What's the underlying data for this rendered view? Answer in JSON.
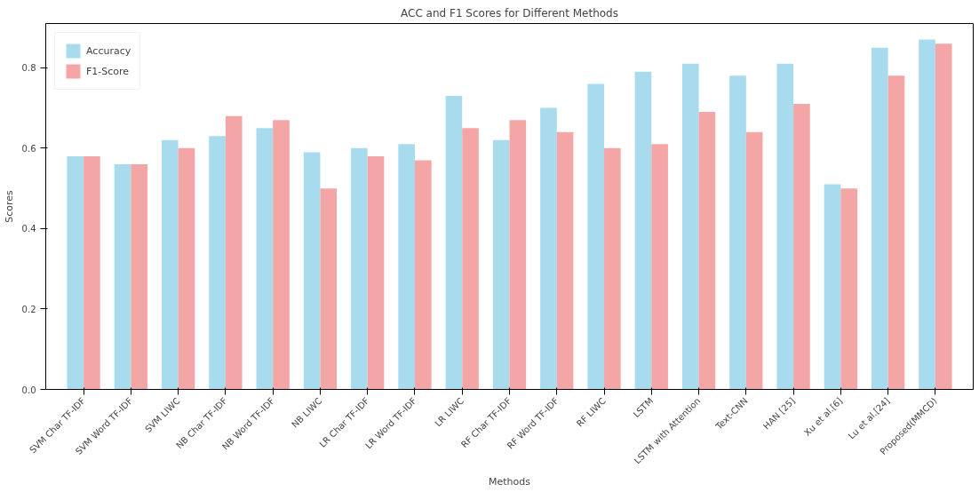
{
  "chart_data": {
    "type": "bar",
    "title": "ACC and F1 Scores for Different Methods",
    "xlabel": "Methods",
    "ylabel": "Scores",
    "categories": [
      "SVM Char TF-IDF",
      "SVM Word TF-IDF",
      "SVM LIWC",
      "NB Char TF-IDF",
      "NB Word TF-IDF",
      "NB LIWC",
      "LR Char TF-IDF",
      "LR Word TF-IDF",
      "LR LIWC",
      "RF Char TF-IDF",
      "RF Word TF-IDF",
      "RF LIWC",
      "LSTM",
      "LSTM with Attention",
      "Text-CNN",
      "HAN [25]",
      "Xu et al.[6]",
      "Lu et al.[24]",
      "Proposed(MMCD)"
    ],
    "series": [
      {
        "name": "Accuracy",
        "color": "#a8dbee",
        "values": [
          0.58,
          0.56,
          0.62,
          0.63,
          0.65,
          0.59,
          0.6,
          0.61,
          0.73,
          0.62,
          0.7,
          0.76,
          0.79,
          0.81,
          0.78,
          0.81,
          0.51,
          0.85,
          0.87
        ]
      },
      {
        "name": "F1-Score",
        "color": "#f4a6a6",
        "values": [
          0.58,
          0.56,
          0.6,
          0.68,
          0.67,
          0.5,
          0.58,
          0.57,
          0.65,
          0.67,
          0.64,
          0.6,
          0.61,
          0.69,
          0.64,
          0.71,
          0.5,
          0.78,
          0.86
        ]
      }
    ],
    "ylim": [
      0,
      0.91
    ],
    "yticks": [
      {
        "value": 0,
        "label": "0.0"
      },
      {
        "value": 0.2,
        "label": "0.2"
      },
      {
        "value": 0.4,
        "label": "0.4"
      },
      {
        "value": 0.6,
        "label": "0.6"
      },
      {
        "value": 0.8,
        "label": "0.8"
      }
    ],
    "legend": "top left"
  }
}
